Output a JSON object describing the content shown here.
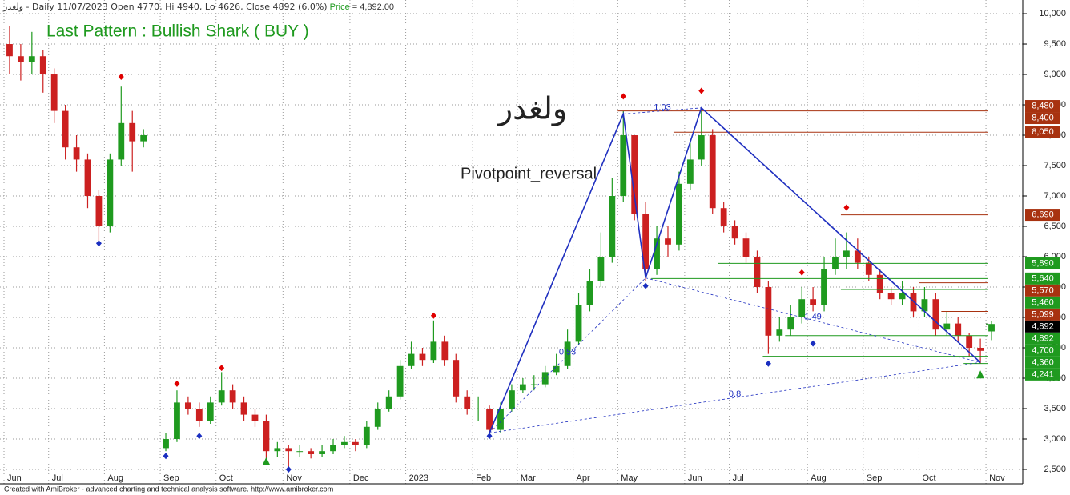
{
  "header": {
    "info": "ولغدر - Daily 11/07/2023 Open 4770, Hi 4940, Lo 4626, Close 4892 (6.0%)",
    "price_label": "Price",
    "price_value": "= 4,892.00"
  },
  "pattern_title": "Last Pattern : Bullish Shark ( BUY )",
  "symbol": "ولغدر",
  "indicator": "Pivotpoint_reversal",
  "footer": "Created with AmiBroker - advanced charting and technical analysis software. http://www.amibroker.com",
  "chart_data": {
    "type": "candlestick",
    "up_color": "#1f9a1f",
    "down_color": "#cc2020",
    "grid": true,
    "ylim": [
      2263,
      10224
    ],
    "yticks": [
      {
        "value": 2500,
        "label": "2,500"
      },
      {
        "value": 3000,
        "label": "3,000"
      },
      {
        "value": 3500,
        "label": "3,500"
      },
      {
        "value": 4000,
        "label": "4,000"
      },
      {
        "value": 4500,
        "label": "4,500"
      },
      {
        "value": 5000,
        "label": "5,000"
      },
      {
        "value": 5500,
        "label": "5,500"
      },
      {
        "value": 6000,
        "label": "6,000"
      },
      {
        "value": 6500,
        "label": "6,500"
      },
      {
        "value": 7000,
        "label": "7,000"
      },
      {
        "value": 7500,
        "label": "7,500"
      },
      {
        "value": 8000,
        "label": "8,000"
      },
      {
        "value": 8500,
        "label": "8,500"
      },
      {
        "value": 9000,
        "label": "9,000"
      },
      {
        "value": 9500,
        "label": "9,500"
      },
      {
        "value": 10000,
        "label": "10,000"
      }
    ],
    "categories": [
      "Jun",
      null,
      null,
      null,
      "Jul",
      null,
      null,
      null,
      null,
      "Aug",
      null,
      null,
      null,
      null,
      "Sep",
      null,
      null,
      null,
      null,
      "Oct",
      null,
      null,
      null,
      null,
      null,
      "Nov",
      null,
      null,
      null,
      null,
      null,
      "Dec",
      null,
      null,
      null,
      null,
      "2023",
      null,
      null,
      null,
      null,
      null,
      "Feb",
      null,
      null,
      null,
      "Mar",
      null,
      null,
      null,
      null,
      "Apr",
      null,
      null,
      null,
      "May",
      null,
      null,
      null,
      null,
      null,
      "Jun",
      null,
      null,
      null,
      "Jul",
      null,
      null,
      null,
      null,
      null,
      null,
      "Aug",
      null,
      null,
      null,
      null,
      "Sep",
      null,
      null,
      null,
      null,
      "Oct",
      null,
      null,
      null,
      null,
      null,
      "Nov"
    ],
    "open": [
      9500,
      9300,
      9200,
      9300,
      9000,
      8400,
      7800,
      7600,
      7000,
      6500,
      7600,
      8200,
      7900,
      null,
      2850,
      3000,
      3600,
      3500,
      3300,
      3600,
      3800,
      3600,
      3400,
      3300,
      2800,
      2850,
      2800,
      2800,
      2750,
      2800,
      2900,
      2950,
      2900,
      3200,
      3500,
      3700,
      4200,
      4400,
      4300,
      4600,
      4300,
      3700,
      3500,
      3500,
      3150,
      3500,
      3800,
      3900,
      3900,
      4100,
      4200,
      4600,
      5200,
      5600,
      6000,
      7000,
      8000,
      6700,
      5800,
      6300,
      6200,
      7200,
      7600,
      8000,
      6800,
      6500,
      6300,
      6000,
      5500,
      4700,
      4800,
      5000,
      5300,
      5200,
      5800,
      6000,
      6100,
      5900,
      5700,
      5400,
      5300,
      5400,
      5100,
      5300,
      4800,
      4900,
      4700,
      4500,
      4770
    ],
    "high": [
      9800,
      9500,
      9700,
      9400,
      9100,
      8500,
      8000,
      7700,
      7100,
      7700,
      8800,
      8400,
      8100,
      null,
      3100,
      3800,
      3700,
      3600,
      3700,
      4100,
      3900,
      3700,
      3500,
      3400,
      2950,
      2900,
      2900,
      2850,
      2900,
      3000,
      3050,
      3000,
      3300,
      3600,
      3800,
      4300,
      4600,
      4500,
      4950,
      4700,
      4400,
      3800,
      3700,
      3550,
      3600,
      3900,
      4000,
      4050,
      4200,
      4400,
      4800,
      5400,
      5800,
      6400,
      7300,
      8400,
      8000,
      6900,
      6500,
      6500,
      7400,
      7900,
      8400,
      8100,
      6900,
      6600,
      6400,
      6100,
      5600,
      5000,
      5200,
      5500,
      5500,
      6000,
      6300,
      6400,
      6300,
      6000,
      5800,
      5500,
      5600,
      5500,
      5500,
      5400,
      5100,
      5000,
      4750,
      4650,
      4940
    ],
    "low": [
      9000,
      8900,
      9000,
      8700,
      8200,
      7600,
      7400,
      6800,
      6200,
      6400,
      7500,
      7400,
      7800,
      null,
      2800,
      2950,
      3400,
      3200,
      3250,
      3550,
      3500,
      3300,
      3200,
      2600,
      2700,
      2500,
      2700,
      2680,
      2700,
      2750,
      2850,
      2800,
      2850,
      3150,
      3450,
      3650,
      4150,
      4200,
      4250,
      4200,
      3600,
      3400,
      3300,
      3080,
      3100,
      3450,
      3750,
      3800,
      3850,
      4050,
      4150,
      4550,
      5100,
      5500,
      5900,
      6900,
      6600,
      5600,
      5700,
      6000,
      6100,
      7100,
      7500,
      6700,
      6400,
      6200,
      5900,
      5400,
      4400,
      4600,
      4700,
      4900,
      5100,
      5100,
      5700,
      5800,
      5800,
      5600,
      5300,
      5200,
      5200,
      5000,
      5000,
      4700,
      4700,
      4600,
      4350,
      4241,
      4626
    ],
    "close": [
      9300,
      9200,
      9300,
      9000,
      8400,
      7800,
      7600,
      7000,
      6500,
      7600,
      8200,
      7900,
      8000,
      null,
      3000,
      3600,
      3500,
      3300,
      3600,
      3800,
      3600,
      3400,
      3300,
      2800,
      2850,
      2800,
      2800,
      2750,
      2800,
      2900,
      2950,
      2900,
      3200,
      3500,
      3700,
      4200,
      4400,
      4300,
      4600,
      4300,
      3700,
      3500,
      3500,
      3150,
      3500,
      3800,
      3900,
      3900,
      4100,
      4200,
      4600,
      5200,
      5600,
      6000,
      7000,
      8000,
      6700,
      5800,
      6300,
      6200,
      7200,
      7600,
      8000,
      6800,
      6500,
      6300,
      6000,
      5500,
      4700,
      4800,
      5000,
      5300,
      5200,
      5800,
      6000,
      6100,
      5900,
      5700,
      5400,
      5300,
      5400,
      5100,
      5300,
      4800,
      4900,
      4700,
      4500,
      4450,
      4892
    ],
    "pivots": [
      {
        "x": 10,
        "y": 8960,
        "kind": "high",
        "color": "#e00000"
      },
      {
        "x": 15,
        "y": 3910,
        "kind": "high",
        "color": "#e00000"
      },
      {
        "x": 19,
        "y": 4170,
        "kind": "high",
        "color": "#e00000"
      },
      {
        "x": 38,
        "y": 5030,
        "kind": "high",
        "color": "#e00000"
      },
      {
        "x": 55,
        "y": 8640,
        "kind": "high",
        "color": "#e00000"
      },
      {
        "x": 62,
        "y": 8730,
        "kind": "high",
        "color": "#e00000"
      },
      {
        "x": 71,
        "y": 5740,
        "kind": "high",
        "color": "#e00000"
      },
      {
        "x": 75,
        "y": 6810,
        "kind": "high",
        "color": "#e00000"
      },
      {
        "x": 8,
        "y": 6220,
        "kind": "low",
        "color": "#1a2ec0"
      },
      {
        "x": 14,
        "y": 2720,
        "kind": "low",
        "color": "#1a2ec0"
      },
      {
        "x": 17,
        "y": 3050,
        "kind": "low",
        "color": "#1a2ec0"
      },
      {
        "x": 25,
        "y": 2500,
        "kind": "low",
        "color": "#1a2ec0"
      },
      {
        "x": 43,
        "y": 3050,
        "kind": "low",
        "color": "#1a2ec0"
      },
      {
        "x": 57,
        "y": 5520,
        "kind": "low",
        "color": "#1a2ec0"
      },
      {
        "x": 68,
        "y": 4240,
        "kind": "low",
        "color": "#1a2ec0"
      },
      {
        "x": 72,
        "y": 4570,
        "kind": "low",
        "color": "#1a2ec0"
      },
      {
        "x": 23,
        "y": 2620,
        "kind": "buy",
        "color": "#1f9a1f"
      },
      {
        "x": 87,
        "y": 4050,
        "kind": "buy",
        "color": "#1f9a1f"
      }
    ],
    "pattern": {
      "color": "#2030c0",
      "points": [
        {
          "x": 43,
          "y": 3100
        },
        {
          "x": 55,
          "y": 8350
        },
        {
          "x": 57,
          "y": 5650
        },
        {
          "x": 62,
          "y": 8450
        },
        {
          "x": 87,
          "y": 4260
        }
      ],
      "ratios": [
        1.03,
        0.53,
        1.49,
        0.8
      ]
    },
    "levels": [
      {
        "value": 8480,
        "label": "8,480",
        "color": "#a83210",
        "from": 62
      },
      {
        "value": 8400,
        "label": "8,400",
        "color": "#a83210",
        "from": 55
      },
      {
        "value": 8050,
        "label": "8,050",
        "color": "#a83210",
        "from": 60
      },
      {
        "value": 6690,
        "label": "6,690",
        "color": "#a83210",
        "from": 75
      },
      {
        "value": 5890,
        "label": "5,890",
        "color": "#1f9a1f",
        "from": 64
      },
      {
        "value": 5640,
        "label": "5,640",
        "color": "#1f9a1f",
        "from": 58
      },
      {
        "value": 5570,
        "label": "5,570",
        "color": "#a83210",
        "from": 82
      },
      {
        "value": 5460,
        "label": "5,460",
        "color": "#1f9a1f",
        "from": 75
      },
      {
        "value": 5099,
        "label": "5,099",
        "color": "#a83210",
        "from": 84
      },
      {
        "value": 4892,
        "label": "4,892",
        "color": "#000000",
        "from": 88
      },
      {
        "value": 4892,
        "label": "4,892",
        "color": "#1f9a1f",
        "from": 88
      },
      {
        "value": 4700,
        "label": "4,700",
        "color": "#1f9a1f",
        "from": 70
      },
      {
        "value": 4360,
        "label": "4,360",
        "color": "#1f9a1f",
        "from": 68
      },
      {
        "value": 4241,
        "label": "4,241",
        "color": "#1f9a1f",
        "from": 86
      }
    ]
  }
}
